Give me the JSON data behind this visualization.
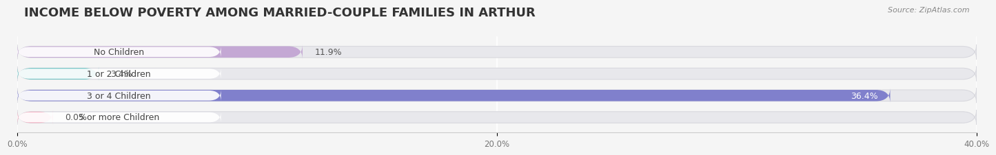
{
  "title": "INCOME BELOW POVERTY AMONG MARRIED-COUPLE FAMILIES IN ARTHUR",
  "source": "Source: ZipAtlas.com",
  "categories": [
    "No Children",
    "1 or 2 Children",
    "3 or 4 Children",
    "5 or more Children"
  ],
  "values": [
    11.9,
    3.4,
    36.4,
    0.0
  ],
  "bar_colors": [
    "#c4a8d4",
    "#5bbfbe",
    "#8080cc",
    "#f4a8bc"
  ],
  "background_color": "#f5f5f5",
  "bar_bg_color": "#e8e8ec",
  "bar_bg_outline": "#d8d8de",
  "xlim": [
    0,
    40
  ],
  "xticks": [
    0.0,
    20.0,
    40.0
  ],
  "xtick_labels": [
    "0.0%",
    "20.0%",
    "40.0%"
  ],
  "title_fontsize": 13,
  "label_fontsize": 9,
  "value_fontsize": 9,
  "bar_height": 0.52,
  "label_color": "#444444",
  "title_color": "#333333",
  "source_color": "#888888",
  "value_inside_color": "#ffffff",
  "value_outside_color": "#555555",
  "min_bar_display": 1.5
}
